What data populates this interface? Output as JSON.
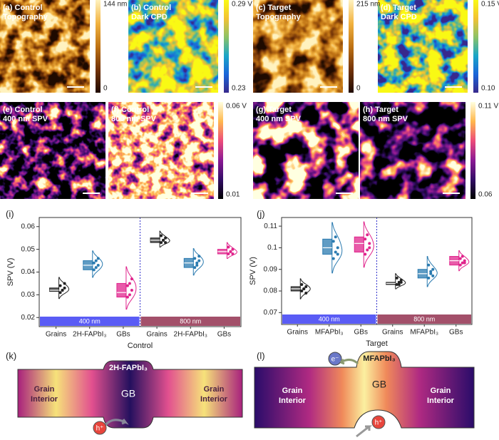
{
  "maps": [
    {
      "label": [
        "(a) Control",
        "Topography"
      ],
      "colormap": "afmhot"
    },
    {
      "label": [
        "(b) Control",
        "Dark CPD"
      ],
      "colormap": "parula"
    },
    {
      "label": [
        "(c) Target",
        "Topography"
      ],
      "colormap": "afmhot"
    },
    {
      "label": [
        "(d) Target",
        "Dark CPD"
      ],
      "colormap": "parula"
    },
    {
      "label": [
        "(e) Control",
        "400 nm SPV"
      ],
      "colormap": "plasma"
    },
    {
      "label": [
        "(f) Control",
        "800 nm SPV"
      ],
      "colormap": "plasma"
    },
    {
      "label": [
        "(g) Target",
        "400 nm SPV"
      ],
      "colormap": "plasma"
    },
    {
      "label": [
        "(h) Target",
        "800 nm SPV"
      ],
      "colormap": "plasma"
    }
  ],
  "colorbars": [
    {
      "max": "144 nm",
      "min": "0",
      "colormap": "afmhot"
    },
    {
      "max": "0.29 V",
      "min": "0.23",
      "colormap": "parula"
    },
    {
      "max": "215 nm",
      "min": "0",
      "colormap": "afmhot"
    },
    {
      "max": "0.15 V",
      "min": "0.10",
      "colormap": "parula"
    },
    {
      "max": "0.06 V",
      "min": "0.01",
      "colormap": "plasma"
    },
    {
      "max": "0.11 V",
      "min": "0.06",
      "colormap": "plasma"
    }
  ],
  "chart_data": [
    {
      "type": "box",
      "panel": "(i)",
      "xlabel": "Control",
      "ylabel": "SPV (V)",
      "categories": [
        "Grains",
        "2H-FAPbI₃",
        "GBs",
        "Grains",
        "2H-FAPbI₃",
        "GBs"
      ],
      "colors": [
        "#222222",
        "#2b7bb0",
        "#e0248c",
        "#222222",
        "#2b7bb0",
        "#e0248c"
      ],
      "q1": [
        0.0315,
        0.041,
        0.029,
        0.053,
        0.042,
        0.048
      ],
      "median": [
        0.032,
        0.043,
        0.031,
        0.054,
        0.044,
        0.049
      ],
      "q3": [
        0.033,
        0.045,
        0.035,
        0.055,
        0.046,
        0.05
      ],
      "points": [
        [
          0.031,
          0.032,
          0.033,
          0.034,
          0.032,
          0.035
        ],
        [
          0.041,
          0.042,
          0.043,
          0.044,
          0.045,
          0.046
        ],
        [
          0.029,
          0.03,
          0.032,
          0.034,
          0.035,
          0.037
        ],
        [
          0.053,
          0.054,
          0.055,
          0.056,
          0.054,
          0.053
        ],
        [
          0.042,
          0.043,
          0.045,
          0.046,
          0.044,
          0.047
        ],
        [
          0.048,
          0.049,
          0.05,
          0.051,
          0.049,
          0.048
        ]
      ],
      "groups": [
        {
          "name": "400 nm",
          "color": "#5a5cf5"
        },
        {
          "name": "800 nm",
          "color": "#a3506a"
        }
      ],
      "ylim": [
        0.016,
        0.064
      ],
      "yticks": [
        0.02,
        0.03,
        0.04,
        0.05,
        0.06
      ]
    },
    {
      "type": "box",
      "panel": "(j)",
      "xlabel": "Target",
      "ylabel": "SPV (V)",
      "categories": [
        "Grains",
        "MFAPbI₃",
        "GBs",
        "Grains",
        "MFAPbI₃",
        "GBs"
      ],
      "colors": [
        "#222222",
        "#2b7bb0",
        "#e0248c",
        "#222222",
        "#2b7bb0",
        "#e0248c"
      ],
      "q1": [
        0.08,
        0.097,
        0.098,
        0.083,
        0.086,
        0.092
      ],
      "median": [
        0.081,
        0.1,
        0.102,
        0.0835,
        0.088,
        0.094
      ],
      "q3": [
        0.082,
        0.104,
        0.105,
        0.084,
        0.09,
        0.096
      ],
      "points": [
        [
          0.08,
          0.081,
          0.082,
          0.083,
          0.081,
          0.079
        ],
        [
          0.095,
          0.098,
          0.1,
          0.103,
          0.105,
          0.097
        ],
        [
          0.097,
          0.099,
          0.102,
          0.104,
          0.106,
          0.1
        ],
        [
          0.083,
          0.084,
          0.085,
          0.086,
          0.083,
          0.084
        ],
        [
          0.086,
          0.088,
          0.09,
          0.092,
          0.089,
          0.087
        ],
        [
          0.092,
          0.093,
          0.094,
          0.095,
          0.096,
          0.093
        ]
      ],
      "groups": [
        {
          "name": "400 nm",
          "color": "#5a5cf5"
        },
        {
          "name": "800 nm",
          "color": "#a3506a"
        }
      ],
      "ylim": [
        0.0645,
        0.114
      ],
      "yticks": [
        0.07,
        0.08,
        0.09,
        0.1,
        0.11
      ]
    }
  ],
  "diagrams": [
    {
      "panel": "(k)",
      "title": "2H-FAPbI₃",
      "center": "GB",
      "left": [
        "Grain",
        "Interior"
      ],
      "right": [
        "Grain",
        "Interior"
      ],
      "carrier": "h⁺"
    },
    {
      "panel": "(l)",
      "title": "MFAPbI₃",
      "center": "GB",
      "left": [
        "Grain",
        "Interior"
      ],
      "right": [
        "Grain",
        "Interior"
      ],
      "carrier": "h⁺",
      "carrier2": "e⁻"
    }
  ]
}
